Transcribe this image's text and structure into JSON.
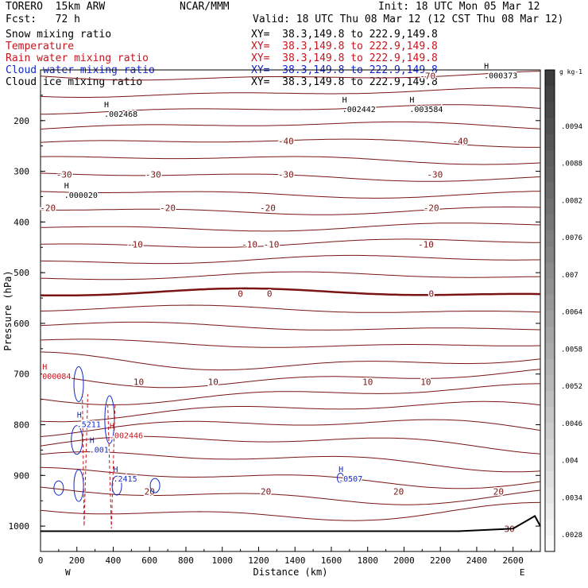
{
  "header": {
    "model": "TORERO  15km ARW",
    "org": "NCAR/MMM",
    "init": "Init: 18 UTC Mon 05 Mar 12",
    "fcst": "Fcst:   72 h",
    "valid": "Valid: 18 UTC Thu 08 Mar 12 (12 CST Thu 08 Mar 12)"
  },
  "legend": [
    {
      "name": "Snow mixing ratio",
      "xy": "XY=  38.3,149.8 to 222.9,149.8",
      "color": "#000000"
    },
    {
      "name": "Temperature",
      "xy": "XY=  38.3,149.8 to 222.9,149.8",
      "color": "#c8141e"
    },
    {
      "name": "Rain water mixing ratio",
      "xy": "XY=  38.3,149.8 to 222.9,149.8",
      "color": "#c8141e"
    },
    {
      "name": "Cloud water mixing ratio",
      "xy": "XY=  38.3,149.8 to 222.9,149.8",
      "color": "#1428c8"
    },
    {
      "name": "Cloud ice mixing ratio",
      "xy": "XY=  38.3,149.8 to 222.9,149.8",
      "color": "#000000"
    }
  ],
  "chart_data": {
    "type": "cross-section contour",
    "ylabel": "Pressure (hPa)",
    "xlabel": "Distance (km)",
    "x_ticks": [
      0,
      200,
      400,
      600,
      800,
      1000,
      1200,
      1400,
      1600,
      1800,
      2000,
      2200,
      2400,
      2600
    ],
    "xlim": [
      0,
      2750
    ],
    "y_ticks": [
      200,
      300,
      400,
      500,
      600,
      700,
      800,
      900,
      1000
    ],
    "ylim": [
      100,
      1050
    ],
    "x_end_labels": {
      "left": "W",
      "right": "E"
    },
    "colorbar": {
      "unit": "g kg-1",
      "labels": [
        ".0094",
        ".0088",
        ".0082",
        ".0076",
        ".007",
        ".0064",
        ".0058",
        ".0052",
        ".0046",
        ".004",
        ".0034",
        ".0028"
      ]
    },
    "temperature_contours": [
      {
        "value": -70,
        "label_x": [
          2130
        ],
        "level_p": 112
      },
      {
        "value": -40,
        "label_x": [
          1350,
          2310
        ],
        "level_p": 240
      },
      {
        "value": -30,
        "label_x": [
          130,
          620,
          1350,
          2170
        ],
        "level_p": 306
      },
      {
        "value": -20,
        "label_x": [
          40,
          700,
          1250,
          2150
        ],
        "level_p": 372
      },
      {
        "value": -10,
        "label_x": [
          520,
          1150,
          1270,
          2120
        ],
        "level_p": 444
      },
      {
        "value": 0,
        "label_x": [
          1100,
          1260,
          2150
        ],
        "level_p": 541
      },
      {
        "value": 10,
        "label_x": [
          540,
          950,
          1800,
          2120
        ],
        "level_p": 715
      },
      {
        "value": 20,
        "label_x": [
          600,
          1240,
          1970,
          2520
        ],
        "level_p": 932
      },
      {
        "value": 30,
        "label_x": [
          2580
        ],
        "level_p": 1005
      }
    ],
    "maxima": [
      {
        "label": ".000373",
        "x": 2440,
        "p": 112,
        "color": "#000000"
      },
      {
        "label": ".002468",
        "x": 350,
        "p": 188,
        "color": "#000000"
      },
      {
        "label": ".002442",
        "x": 1660,
        "p": 178,
        "color": "#000000"
      },
      {
        "label": ".003584",
        "x": 2030,
        "p": 178,
        "color": "#000000"
      },
      {
        "label": ".000020",
        "x": 130,
        "p": 348,
        "color": "#000000"
      },
      {
        "label": "000084",
        "x": 10,
        "p": 705,
        "color": "#c8141e"
      },
      {
        "label": ".5211",
        "x": 200,
        "p": 800,
        "color": "#1428c8"
      },
      {
        "label": ".002446",
        "x": 380,
        "p": 822,
        "color": "#c8141e"
      },
      {
        "label": ".001",
        "x": 270,
        "p": 850,
        "color": "#1428c8"
      },
      {
        "label": ".2415",
        "x": 400,
        "p": 907,
        "color": "#1428c8"
      },
      {
        "label": ".0507",
        "x": 1640,
        "p": 907,
        "color": "#1428c8"
      }
    ]
  }
}
